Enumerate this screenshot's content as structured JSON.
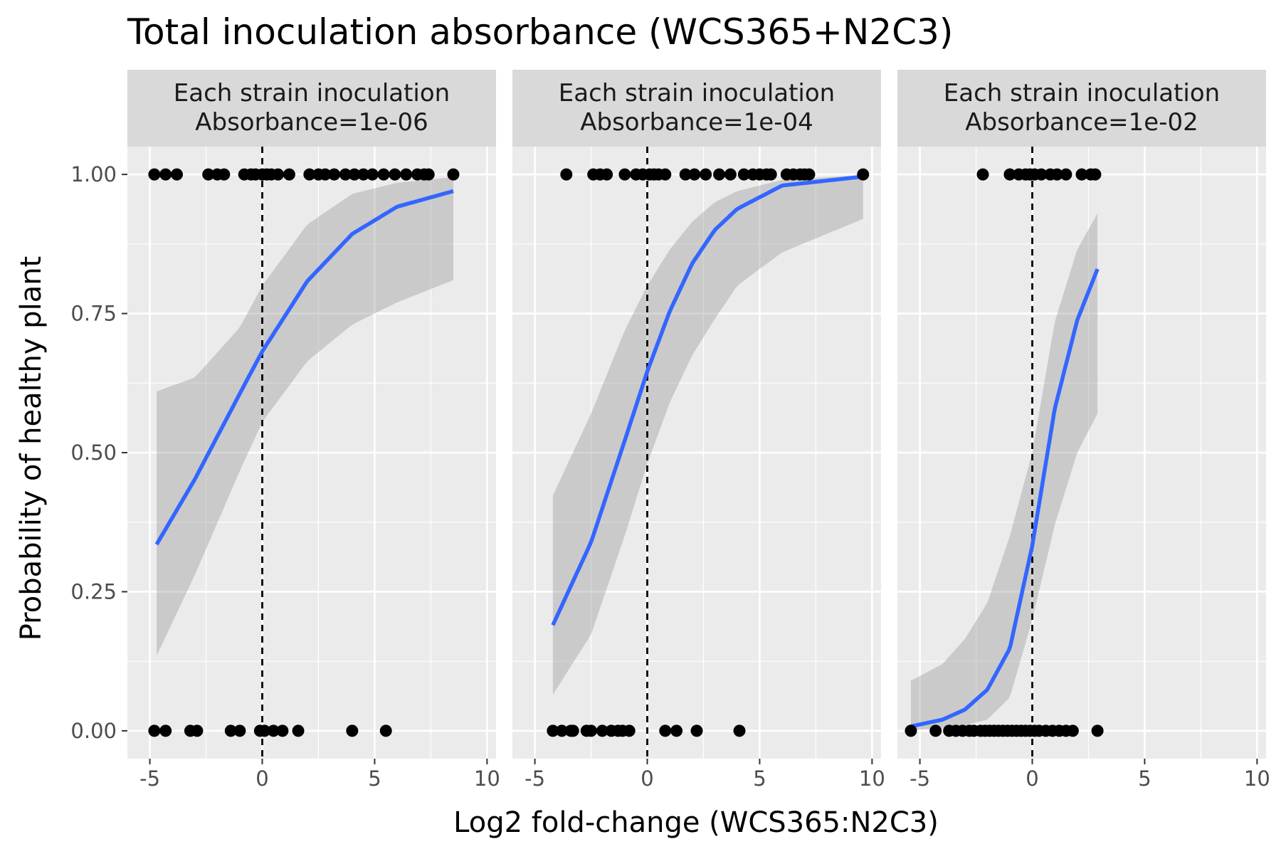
{
  "chart_data": {
    "type": "scatter",
    "title": "Total inoculation absorbance (WCS365+N2C3)",
    "xlabel": "Log2 fold-change (WCS365:N2C3)",
    "ylabel": "Probability of healthy plant",
    "xlim": [
      -6,
      10.4
    ],
    "ylim": [
      -0.05,
      1.05
    ],
    "x_ticks": [
      -5,
      0,
      5,
      10
    ],
    "x_tick_labels": [
      "-5",
      "0",
      "5",
      "10"
    ],
    "y_ticks": [
      0,
      0.25,
      0.5,
      0.75,
      1
    ],
    "y_tick_labels": [
      "0.00",
      "0.25",
      "0.50",
      "0.75",
      "1.00"
    ],
    "grid": true,
    "reference_line": {
      "x": 0,
      "style": "dashed"
    },
    "colors": {
      "fit": "#3366FF",
      "ribbon": "#999999",
      "points": "#000000",
      "panel_bg": "#EBEBEB",
      "strip_bg": "#D9D9D9",
      "grid": "#FFFFFF"
    },
    "panels": [
      {
        "strip_line1": "Each strain inoculation",
        "strip_line2": "Absorbance=1e-06",
        "points_healthy_x": [
          -4.8,
          -4.3,
          -3.8,
          -2.4,
          -2.0,
          -1.7,
          -0.8,
          -0.5,
          -0.3,
          0.0,
          0.2,
          0.4,
          0.7,
          1.2,
          2.1,
          2.5,
          2.8,
          3.2,
          3.7,
          4.1,
          4.5,
          4.9,
          5.4,
          5.9,
          6.4,
          6.9,
          7.2,
          7.4,
          8.5
        ],
        "points_unhealthy_x": [
          -4.8,
          -4.3,
          -3.2,
          -2.9,
          -1.4,
          -1.0,
          -0.1,
          0.1,
          0.5,
          0.9,
          1.6,
          4.0,
          5.5
        ],
        "fit": {
          "x": [
            -4.7,
            -3,
            -1,
            0,
            2,
            4,
            6,
            8.5
          ],
          "y": [
            0.335,
            0.452,
            0.606,
            0.682,
            0.808,
            0.893,
            0.942,
            0.97
          ]
        },
        "ci": {
          "x": [
            -4.7,
            -3,
            -1,
            0,
            2,
            4,
            6,
            8.5
          ],
          "lower": [
            0.135,
            0.28,
            0.467,
            0.555,
            0.664,
            0.73,
            0.77,
            0.81
          ],
          "upper": [
            0.61,
            0.635,
            0.725,
            0.8,
            0.91,
            0.965,
            0.985,
            0.995
          ]
        }
      },
      {
        "strip_line1": "Each strain inoculation",
        "strip_line2": "Absorbance=1e-04",
        "points_healthy_x": [
          -3.6,
          -2.4,
          -2.1,
          -1.8,
          -1.0,
          -0.5,
          -0.2,
          0.1,
          0.3,
          0.5,
          0.8,
          1.7,
          2.1,
          2.6,
          3.2,
          3.7,
          4.3,
          4.7,
          5.0,
          5.3,
          5.5,
          6.2,
          6.5,
          6.8,
          7.0,
          7.2,
          9.6
        ],
        "points_unhealthy_x": [
          -4.2,
          -3.8,
          -3.4,
          -3.3,
          -2.7,
          -2.5,
          -2.0,
          -1.6,
          -1.3,
          -1.1,
          -0.8,
          0.8,
          1.3,
          2.2,
          4.1
        ],
        "fit": {
          "x": [
            -4.2,
            -2.5,
            -1,
            0,
            1,
            2,
            3,
            4,
            6,
            9.6
          ],
          "y": [
            0.19,
            0.339,
            0.522,
            0.646,
            0.754,
            0.84,
            0.9,
            0.938,
            0.98,
            0.996
          ]
        },
        "ci": {
          "x": [
            -4.2,
            -2.5,
            -1,
            0,
            1,
            2,
            3,
            4,
            6,
            9.6
          ],
          "lower": [
            0.065,
            0.173,
            0.351,
            0.48,
            0.59,
            0.675,
            0.74,
            0.8,
            0.86,
            0.92
          ],
          "upper": [
            0.423,
            0.57,
            0.72,
            0.8,
            0.865,
            0.915,
            0.95,
            0.97,
            0.99,
            0.999
          ]
        }
      },
      {
        "strip_line1": "Each strain inoculation",
        "strip_line2": "Absorbance=1e-02",
        "points_healthy_x": [
          -2.2,
          -1.0,
          -0.6,
          -0.3,
          -0.1,
          0.1,
          0.4,
          0.8,
          1.1,
          1.5,
          2.2,
          2.6,
          2.8
        ],
        "points_unhealthy_x": [
          -5.4,
          -4.3,
          -3.7,
          -3.4,
          -3.1,
          -2.8,
          -2.6,
          -2.3,
          -2.1,
          -1.9,
          -1.7,
          -1.5,
          -1.3,
          -1.1,
          -0.9,
          -0.7,
          -0.5,
          -0.3,
          -0.1,
          0.1,
          0.3,
          0.6,
          0.9,
          1.2,
          1.5,
          1.8,
          2.9
        ],
        "fit": {
          "x": [
            -5.4,
            -4,
            -3,
            -2,
            -1,
            0,
            1,
            2,
            2.9
          ],
          "y": [
            0.008,
            0.02,
            0.038,
            0.074,
            0.148,
            0.333,
            0.579,
            0.738,
            0.83
          ]
        },
        "ci": {
          "x": [
            -5.4,
            -4,
            -3,
            -2,
            -1,
            0,
            1,
            2,
            2.9
          ],
          "lower": [
            0.001,
            0.005,
            0.01,
            0.02,
            0.06,
            0.2,
            0.37,
            0.5,
            0.57
          ],
          "upper": [
            0.09,
            0.12,
            0.165,
            0.23,
            0.35,
            0.5,
            0.735,
            0.865,
            0.93
          ]
        }
      }
    ]
  }
}
